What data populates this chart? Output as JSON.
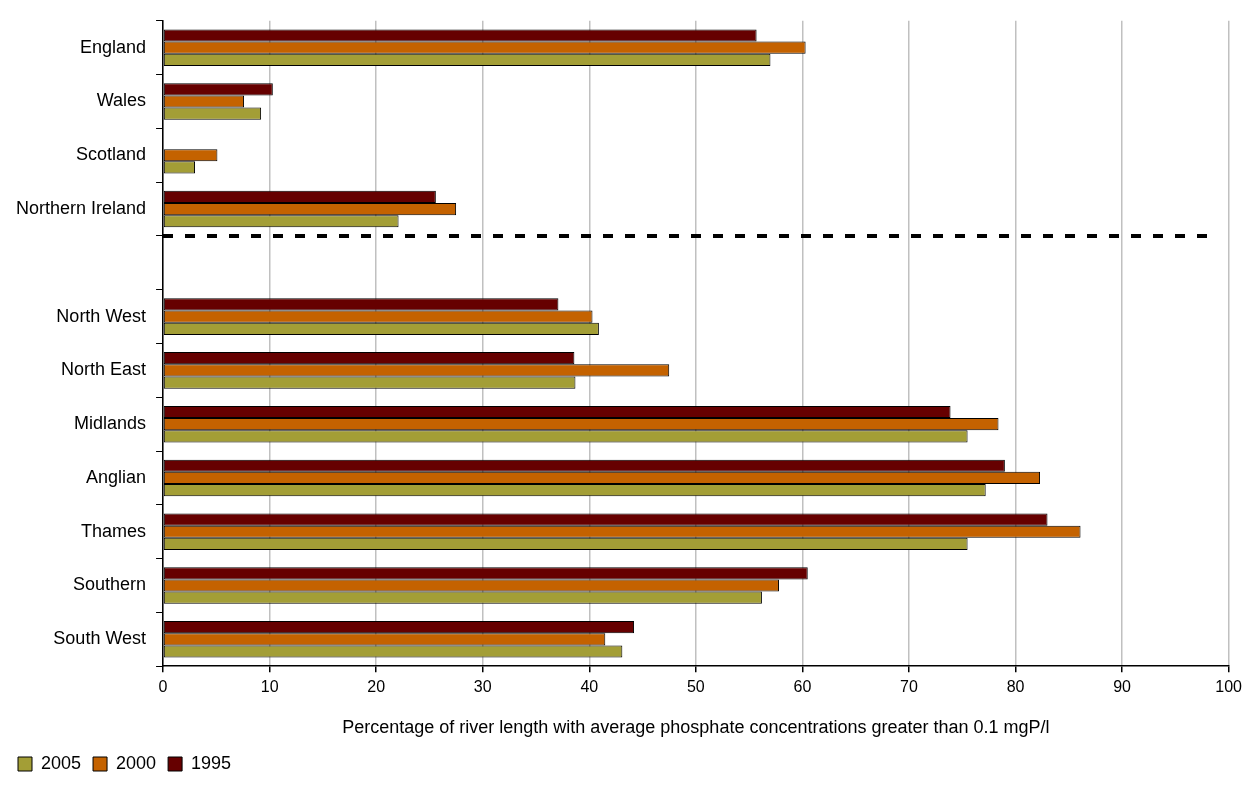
{
  "chart_data": {
    "type": "bar",
    "orientation": "horizontal",
    "categories": [
      "England",
      "Wales",
      "Scotland",
      "Northern Ireland",
      null,
      "North West",
      "North East",
      "Midlands",
      "Anglian",
      "Thames",
      "Southern",
      "South West"
    ],
    "series": [
      {
        "name": "2005",
        "color": "#a39e36",
        "values": [
          57.0,
          9.2,
          3.0,
          22.1,
          null,
          40.9,
          38.7,
          75.5,
          77.2,
          75.5,
          56.2,
          43.1
        ]
      },
      {
        "name": "2000",
        "color": "#c46200",
        "values": [
          60.3,
          7.6,
          5.1,
          27.5,
          null,
          40.3,
          47.5,
          78.4,
          82.3,
          86.1,
          57.8,
          41.5
        ]
      },
      {
        "name": "1995",
        "color": "#660000",
        "values": [
          55.7,
          10.3,
          null,
          25.6,
          null,
          37.1,
          38.6,
          73.9,
          79.0,
          83.0,
          60.5,
          44.2
        ]
      }
    ],
    "xlabel": "Percentage of river length with average phosphate concentrations greater than 0.1 mgP/l",
    "xlim": [
      0,
      100
    ],
    "xticks": [
      0,
      10,
      20,
      30,
      40,
      50,
      60,
      70,
      80,
      90,
      100
    ],
    "grid": "x",
    "legend": "bottom left"
  }
}
